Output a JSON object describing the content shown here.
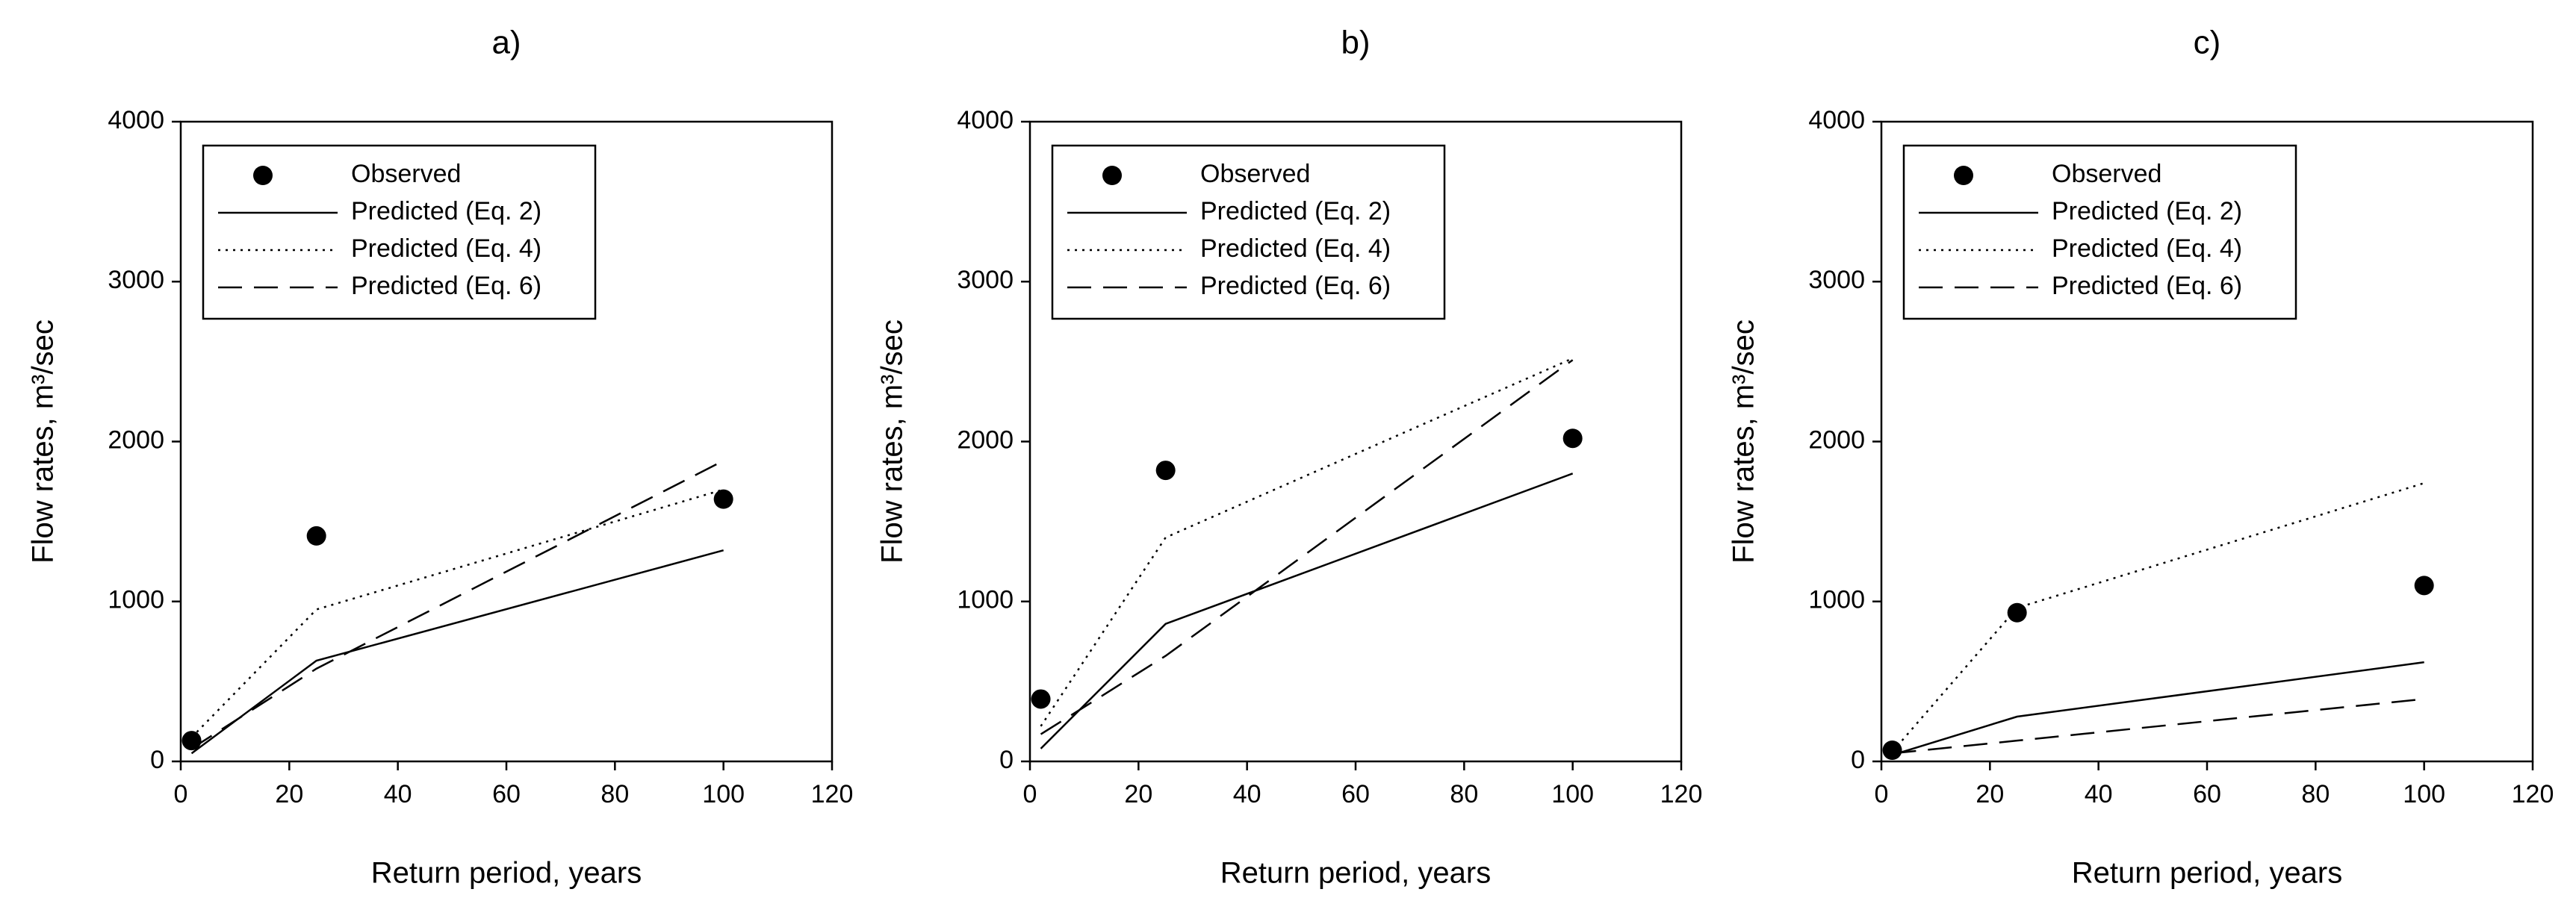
{
  "chart_data": [
    {
      "type": "line",
      "title": "a)",
      "xlabel": "Return period, years",
      "ylabel": "Flow rates, m³/sec",
      "x": [
        2,
        25,
        100
      ],
      "xlim": [
        0,
        120
      ],
      "ylim": [
        0,
        4000
      ],
      "xticks": [
        0,
        20,
        40,
        60,
        80,
        100,
        120
      ],
      "yticks": [
        0,
        1000,
        2000,
        3000,
        4000
      ],
      "legend": "upper left",
      "series": [
        {
          "name": "Observed",
          "style": "marker",
          "color": "#000000",
          "values": [
            130,
            1410,
            1640
          ]
        },
        {
          "name": "Predicted (Eq. 2)",
          "style": "solid",
          "color": "#000000",
          "values": [
            50,
            630,
            1320
          ]
        },
        {
          "name": "Predicted (Eq. 4)",
          "style": "dotted",
          "color": "#000000",
          "values": [
            150,
            950,
            1700
          ]
        },
        {
          "name": "Predicted (Eq. 6)",
          "style": "dashed",
          "color": "#000000",
          "values": [
            80,
            580,
            1880
          ]
        }
      ]
    },
    {
      "type": "line",
      "title": "b)",
      "xlabel": "Return period, years",
      "ylabel": "Flow rates, m³/sec",
      "x": [
        2,
        25,
        100
      ],
      "xlim": [
        0,
        120
      ],
      "ylim": [
        0,
        4000
      ],
      "xticks": [
        0,
        20,
        40,
        60,
        80,
        100,
        120
      ],
      "yticks": [
        0,
        1000,
        2000,
        3000,
        4000
      ],
      "legend": "upper left",
      "series": [
        {
          "name": "Observed",
          "style": "marker",
          "color": "#000000",
          "values": [
            390,
            1820,
            2020
          ]
        },
        {
          "name": "Predicted (Eq. 2)",
          "style": "solid",
          "color": "#000000",
          "values": [
            80,
            860,
            1800
          ]
        },
        {
          "name": "Predicted (Eq. 4)",
          "style": "dotted",
          "color": "#000000",
          "values": [
            220,
            1400,
            2520
          ]
        },
        {
          "name": "Predicted (Eq. 6)",
          "style": "dashed",
          "color": "#000000",
          "values": [
            170,
            660,
            2510
          ]
        }
      ]
    },
    {
      "type": "line",
      "title": "c)",
      "xlabel": "Return period, years",
      "ylabel": "Flow rates, m³/sec",
      "x": [
        2,
        25,
        100
      ],
      "xlim": [
        0,
        120
      ],
      "ylim": [
        0,
        4000
      ],
      "xticks": [
        0,
        20,
        40,
        60,
        80,
        100,
        120
      ],
      "yticks": [
        0,
        1000,
        2000,
        3000,
        4000
      ],
      "legend": "upper left",
      "series": [
        {
          "name": "Observed",
          "style": "marker",
          "color": "#000000",
          "values": [
            70,
            930,
            1100
          ]
        },
        {
          "name": "Predicted (Eq. 2)",
          "style": "solid",
          "color": "#000000",
          "values": [
            40,
            280,
            620
          ]
        },
        {
          "name": "Predicted (Eq. 4)",
          "style": "dotted",
          "color": "#000000",
          "values": [
            60,
            960,
            1740
          ]
        },
        {
          "name": "Predicted (Eq. 6)",
          "style": "dashed",
          "color": "#000000",
          "values": [
            50,
            130,
            390
          ]
        }
      ]
    }
  ]
}
